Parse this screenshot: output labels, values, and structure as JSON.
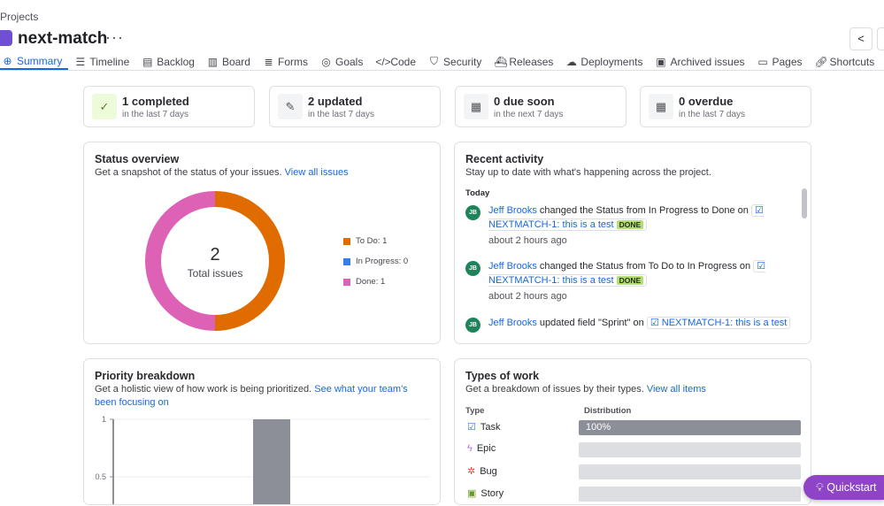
{
  "breadcrumb": "Projects",
  "project": {
    "name": "next-match",
    "more": "···"
  },
  "tabs": [
    {
      "label": "Summary",
      "icon": "globe-icon"
    },
    {
      "label": "Timeline",
      "icon": "timeline-icon"
    },
    {
      "label": "Backlog",
      "icon": "backlog-icon"
    },
    {
      "label": "Board",
      "icon": "board-icon"
    },
    {
      "label": "Forms",
      "icon": "forms-icon"
    },
    {
      "label": "Goals",
      "icon": "goals-icon"
    },
    {
      "label": "Code",
      "icon": "code-icon"
    },
    {
      "label": "Security",
      "icon": "shield-icon"
    },
    {
      "label": "Releases",
      "icon": "ship-icon"
    },
    {
      "label": "Deployments",
      "icon": "cloud-upload-icon"
    },
    {
      "label": "Archived issues",
      "icon": "archive-icon"
    },
    {
      "label": "Pages",
      "icon": "page-icon"
    },
    {
      "label": "Shortcuts",
      "icon": "link-icon"
    }
  ],
  "stats": [
    {
      "value": "1 completed",
      "sub": "in the last 7 days",
      "icon": "check-circle-icon"
    },
    {
      "value": "2 updated",
      "sub": "in the last 7 days",
      "icon": "edit-icon"
    },
    {
      "value": "0 due soon",
      "sub": "in the next 7 days",
      "icon": "calendar-icon"
    },
    {
      "value": "0 overdue",
      "sub": "in the last 7 days",
      "icon": "calendar-icon"
    }
  ],
  "status": {
    "title": "Status overview",
    "desc": "Get a snapshot of the status of your issues.",
    "link": "View all issues",
    "total": "2",
    "total_label": "Total issues",
    "legend": [
      {
        "label": "To Do: 1",
        "color": "#e06c00"
      },
      {
        "label": "In Progress: 0",
        "color": "#357de8"
      },
      {
        "label": "Done: 1",
        "color": "#dd62b5"
      }
    ]
  },
  "activity": {
    "title": "Recent activity",
    "desc": "Stay up to date with what's happening across the project.",
    "day": "Today",
    "items": [
      {
        "initials": "JB",
        "user": "Jeff Brooks",
        "text": "changed the Status from In Progress to Done on",
        "issue": "NEXTMATCH-1: this is a test",
        "badge": "DONE",
        "time": "about 2 hours ago"
      },
      {
        "initials": "JB",
        "user": "Jeff Brooks",
        "text": "changed the Status from To Do to In Progress on",
        "issue": "NEXTMATCH-1: this is a test",
        "badge": "DONE",
        "time": "about 2 hours ago"
      },
      {
        "initials": "JB",
        "user": "Jeff Brooks",
        "text": "updated field \"Sprint\" on",
        "issue": "NEXTMATCH-1: this is a test",
        "badge": "",
        "time": ""
      }
    ]
  },
  "priority": {
    "title": "Priority breakdown",
    "desc": "Get a holistic view of how work is being prioritized.",
    "link": "See what your team's been focusing on"
  },
  "chart_data": {
    "type": "bar",
    "yticks": [
      "1",
      "0.5"
    ],
    "ylim": [
      0,
      1
    ],
    "values": [
      0,
      0,
      1,
      0,
      0
    ],
    "bar_color": "#8c8f97",
    "grid": true
  },
  "types": {
    "title": "Types of work",
    "desc": "Get a breakdown of issues by their types.",
    "link": "View all items",
    "col_type": "Type",
    "col_dist": "Distribution",
    "rows": [
      {
        "label": "Task",
        "icon": "task-icon",
        "pct": 100,
        "pct_label": "100%"
      },
      {
        "label": "Epic",
        "icon": "epic-icon",
        "pct": 0,
        "pct_label": ""
      },
      {
        "label": "Bug",
        "icon": "bug-icon",
        "pct": 0,
        "pct_label": ""
      },
      {
        "label": "Story",
        "icon": "story-icon",
        "pct": 0,
        "pct_label": ""
      }
    ]
  },
  "quickstart": "Quickstart"
}
